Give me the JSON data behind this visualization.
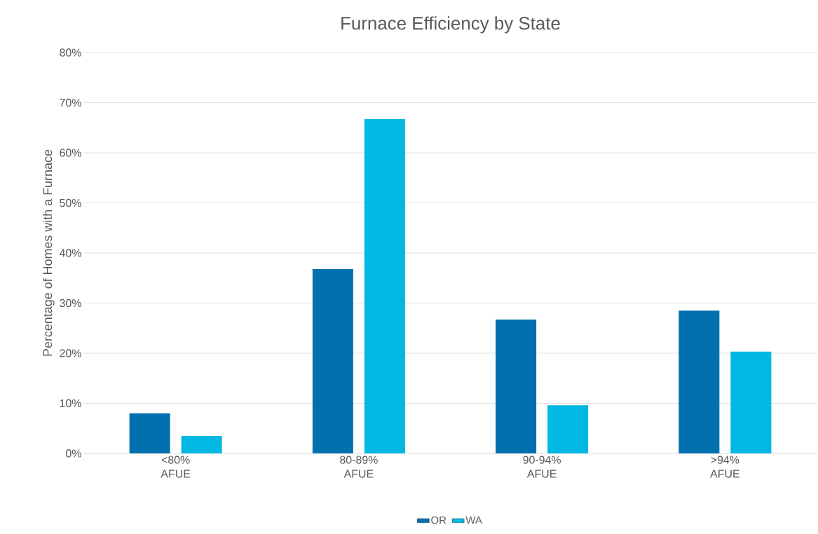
{
  "chart_data": {
    "type": "bar",
    "title": "Furnace Efficiency by State",
    "ylabel": "Percentage of Homes with a Furnace",
    "categories": [
      "<80% AFUE",
      "80-89% AFUE",
      "90-94% AFUE",
      ">94% AFUE"
    ],
    "series": [
      {
        "name": "OR",
        "color": "#0070AF",
        "values": [
          8.0,
          36.8,
          26.7,
          28.5
        ]
      },
      {
        "name": "WA",
        "color": "#00B8E1",
        "values": [
          3.5,
          66.7,
          9.6,
          20.3
        ]
      }
    ],
    "ylim": [
      0,
      80
    ],
    "yticks": [
      {
        "value": 0,
        "label": "0%"
      },
      {
        "value": 10,
        "label": "10%"
      },
      {
        "value": 20,
        "label": "20%"
      },
      {
        "value": 30,
        "label": "30%"
      },
      {
        "value": 40,
        "label": "40%"
      },
      {
        "value": 50,
        "label": "50%"
      },
      {
        "value": 60,
        "label": "60%"
      },
      {
        "value": 70,
        "label": "70%"
      },
      {
        "value": 80,
        "label": "80%"
      }
    ],
    "grid": "y",
    "legend": "bottom"
  }
}
